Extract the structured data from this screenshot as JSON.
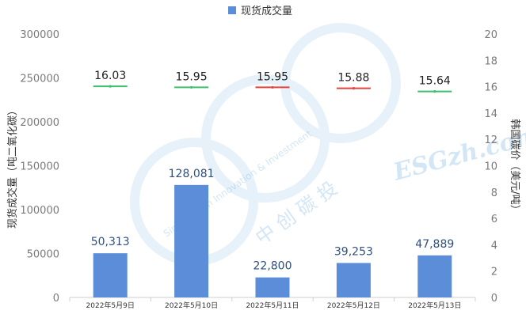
{
  "chart_data": {
    "type": "bar",
    "categories": [
      "2022年5月9日",
      "2022年5月10日",
      "2022年5月11日",
      "2022年5月12日",
      "2022年5月13日"
    ],
    "series": [
      {
        "name": "现货成交量",
        "axis": "left",
        "values": [
          50313,
          128081,
          22800,
          39253,
          47889
        ],
        "labels": [
          "50,313",
          "128,081",
          "22,800",
          "39,253",
          "47,889"
        ]
      },
      {
        "axis": "right",
        "marker": "horizontal-segment",
        "values": [
          16.03,
          15.95,
          15.95,
          15.88,
          15.64
        ],
        "labels": [
          "16.03",
          "15.95",
          "15.95",
          "15.88",
          "15.64"
        ],
        "colors": [
          "#3cbf6e",
          "#3cbf6e",
          "#e8403a",
          "#e8403a",
          "#3cbf6e"
        ]
      }
    ],
    "y_left": {
      "label": "现货成交量（吨二氧化碳）",
      "ylim": [
        0,
        300000
      ],
      "ticks": [
        "0",
        "50000",
        "100000",
        "150000",
        "200000",
        "250000",
        "300000"
      ]
    },
    "y_right": {
      "label": "韩国碳价（美元/吨）",
      "ylim": [
        0,
        20
      ],
      "ticks": [
        "0",
        "2",
        "4",
        "6",
        "8",
        "10",
        "12",
        "14",
        "16",
        "18",
        "20"
      ]
    },
    "legend": {
      "position": "top-center",
      "entries": [
        "现货成交量"
      ]
    },
    "grid": false,
    "colors": {
      "bar": "#5b8dd9",
      "up": "#3cbf6e",
      "down": "#e8403a"
    }
  },
  "watermark": {
    "text_cn": "中 创 碳 投",
    "text_en": "Sino Carbon Innovation & Investment",
    "site": "ESGzh.com"
  }
}
